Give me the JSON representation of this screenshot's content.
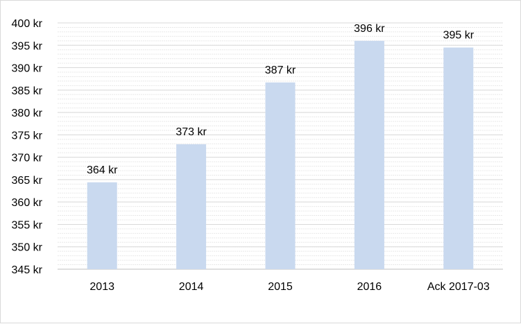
{
  "chart_data": {
    "type": "bar",
    "categories": [
      "2013",
      "2014",
      "2015",
      "2016",
      "Ack 2017-03"
    ],
    "values": [
      364.4,
      372.9,
      386.7,
      396.0,
      394.5
    ],
    "data_labels": [
      "364 kr",
      "373 kr",
      "387 kr",
      "396 kr",
      "395 kr"
    ],
    "title": "",
    "xlabel": "",
    "ylabel": "",
    "ylim": [
      345,
      400
    ],
    "yticks": [
      345,
      350,
      355,
      360,
      365,
      370,
      375,
      380,
      385,
      390,
      395,
      400
    ],
    "ytick_labels": [
      "345 kr",
      "350 kr",
      "355 kr",
      "360 kr",
      "365 kr",
      "370 kr",
      "375 kr",
      "380 kr",
      "385 kr",
      "390 kr",
      "395 kr",
      "400 kr"
    ],
    "minor_grid_step": 1,
    "grid": true,
    "legend": false,
    "bar_color": "#c9d9ef",
    "grid_color": "#d9d9d9",
    "axis_color": "#bfbfbf"
  }
}
